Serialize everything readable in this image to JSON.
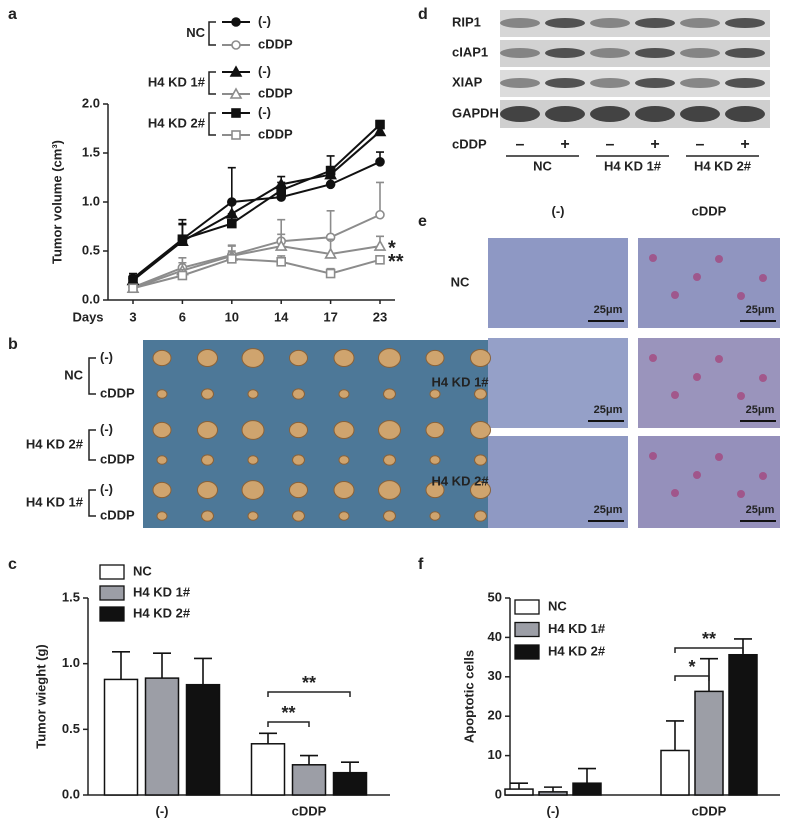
{
  "figure": {
    "panel_labels": [
      "a",
      "b",
      "c",
      "d",
      "e",
      "f"
    ],
    "photo": {
      "groups": [
        {
          "label": "NC",
          "rows": [
            "(-)",
            "cDDP"
          ]
        },
        {
          "label": "H4 KD 2#",
          "rows": [
            "(-)",
            "cDDP"
          ]
        },
        {
          "label": "H4 KD 1#",
          "rows": [
            "(-)",
            "cDDP"
          ]
        }
      ]
    },
    "blot": {
      "proteins": [
        "RIP1",
        "cIAP1",
        "XIAP",
        "GAPDH"
      ],
      "treatment_label": "cDDP",
      "treatments": [
        "–",
        "+",
        "–",
        "+",
        "–",
        "+"
      ],
      "groups": [
        "NC",
        "H4 KD 1#",
        "H4 KD 2#"
      ]
    },
    "histology": {
      "columns": [
        "(-)",
        "cDDP"
      ],
      "rows": [
        "NC",
        "H4 KD 1#",
        "H4 KD 2#"
      ],
      "scale_label": "25μm"
    }
  },
  "chart_data": [
    {
      "type": "line",
      "xlabel": "Days",
      "ylabel": "Tumor volume (cm³)",
      "categories": [
        "3",
        "6",
        "10",
        "14",
        "17",
        "23"
      ],
      "ylim": [
        0,
        2
      ],
      "yticks": [
        {
          "value": 0,
          "label": "0.0"
        },
        0.5,
        {
          "value": 1,
          "label": "1.0"
        },
        1.5,
        {
          "value": 2,
          "label": "2.0"
        }
      ],
      "legend_groups": [
        "NC",
        "H4 KD 1#",
        "H4 KD 2#"
      ],
      "series": [
        {
          "name": "(-)",
          "color": "#111111",
          "marker": "circle",
          "open": false,
          "values": [
            0.22,
            0.62,
            1.0,
            1.05,
            1.18,
            1.41
          ],
          "errors": [
            0.05,
            0.2,
            0.35,
            0.08,
            0.1,
            0.1
          ]
        },
        {
          "name": "cDDP",
          "color": "#8c8c8c",
          "marker": "circle",
          "open": true,
          "values": [
            0.13,
            0.33,
            0.46,
            0.6,
            0.64,
            0.87
          ],
          "errors": [
            0.04,
            0.1,
            0.1,
            0.22,
            0.27,
            0.33
          ]
        },
        {
          "name": "(-)",
          "color": "#111111",
          "marker": "triangle",
          "open": false,
          "values": [
            0.2,
            0.6,
            0.88,
            1.18,
            1.28,
            1.72
          ],
          "errors": [
            0.05,
            0.18,
            0.12,
            0.08,
            0.08,
            0.06
          ]
        },
        {
          "name": "cDDP",
          "color": "#8c8c8c",
          "marker": "triangle",
          "open": true,
          "values": [
            0.12,
            0.3,
            0.45,
            0.55,
            0.47,
            0.55
          ],
          "errors": [
            0.04,
            0.08,
            0.1,
            0.12,
            0.15,
            0.1
          ],
          "end_mark": "*"
        },
        {
          "name": "(-)",
          "color": "#111111",
          "marker": "square",
          "open": false,
          "values": [
            0.2,
            0.62,
            0.78,
            1.12,
            1.32,
            1.79
          ],
          "errors": [
            0.05,
            0.15,
            0.1,
            0.08,
            0.15,
            0.04
          ]
        },
        {
          "name": "cDDP",
          "color": "#8c8c8c",
          "marker": "square",
          "open": true,
          "values": [
            0.12,
            0.25,
            0.42,
            0.39,
            0.27,
            0.41
          ],
          "errors": [
            0.03,
            0.06,
            0.08,
            0.06,
            0.05,
            0.04
          ],
          "end_mark": "**"
        }
      ]
    },
    {
      "type": "bar",
      "ylabel": "Tumor wieght (g)",
      "categories": [
        "(-)",
        "cDDP"
      ],
      "ylim": [
        0,
        1.5
      ],
      "yticks": [
        {
          "value": 0,
          "label": "0.0"
        },
        0.5,
        {
          "value": 1,
          "label": "1.0"
        },
        1.5
      ],
      "series": [
        {
          "name": "NC",
          "color": "#ffffff",
          "values": [
            0.88,
            0.39
          ],
          "errors": [
            0.21,
            0.08
          ]
        },
        {
          "name": "H4 KD 1#",
          "color": "#9c9ea6",
          "values": [
            0.89,
            0.23
          ],
          "errors": [
            0.19,
            0.07
          ]
        },
        {
          "name": "H4 KD 2#",
          "color": "#111111",
          "values": [
            0.84,
            0.17
          ],
          "errors": [
            0.2,
            0.08
          ]
        }
      ],
      "annotations": [
        "**",
        "**"
      ]
    },
    {
      "type": "bar",
      "ylabel": "Apoptotic cells",
      "categories": [
        "(-)",
        "cDDP"
      ],
      "ylim": [
        0,
        50
      ],
      "yticks": [
        0,
        10,
        20,
        30,
        40,
        50
      ],
      "series": [
        {
          "name": "NC",
          "color": "#ffffff",
          "values": [
            1.5,
            11.3
          ],
          "errors": [
            1.5,
            7.5
          ]
        },
        {
          "name": "H4 KD 1#",
          "color": "#9c9ea6",
          "values": [
            0.8,
            26.3
          ],
          "errors": [
            1.2,
            8.3
          ]
        },
        {
          "name": "H4 KD 2#",
          "color": "#111111",
          "values": [
            3,
            35.6
          ],
          "errors": [
            3.7,
            4
          ]
        }
      ],
      "annotations": [
        "*",
        "**"
      ]
    }
  ]
}
